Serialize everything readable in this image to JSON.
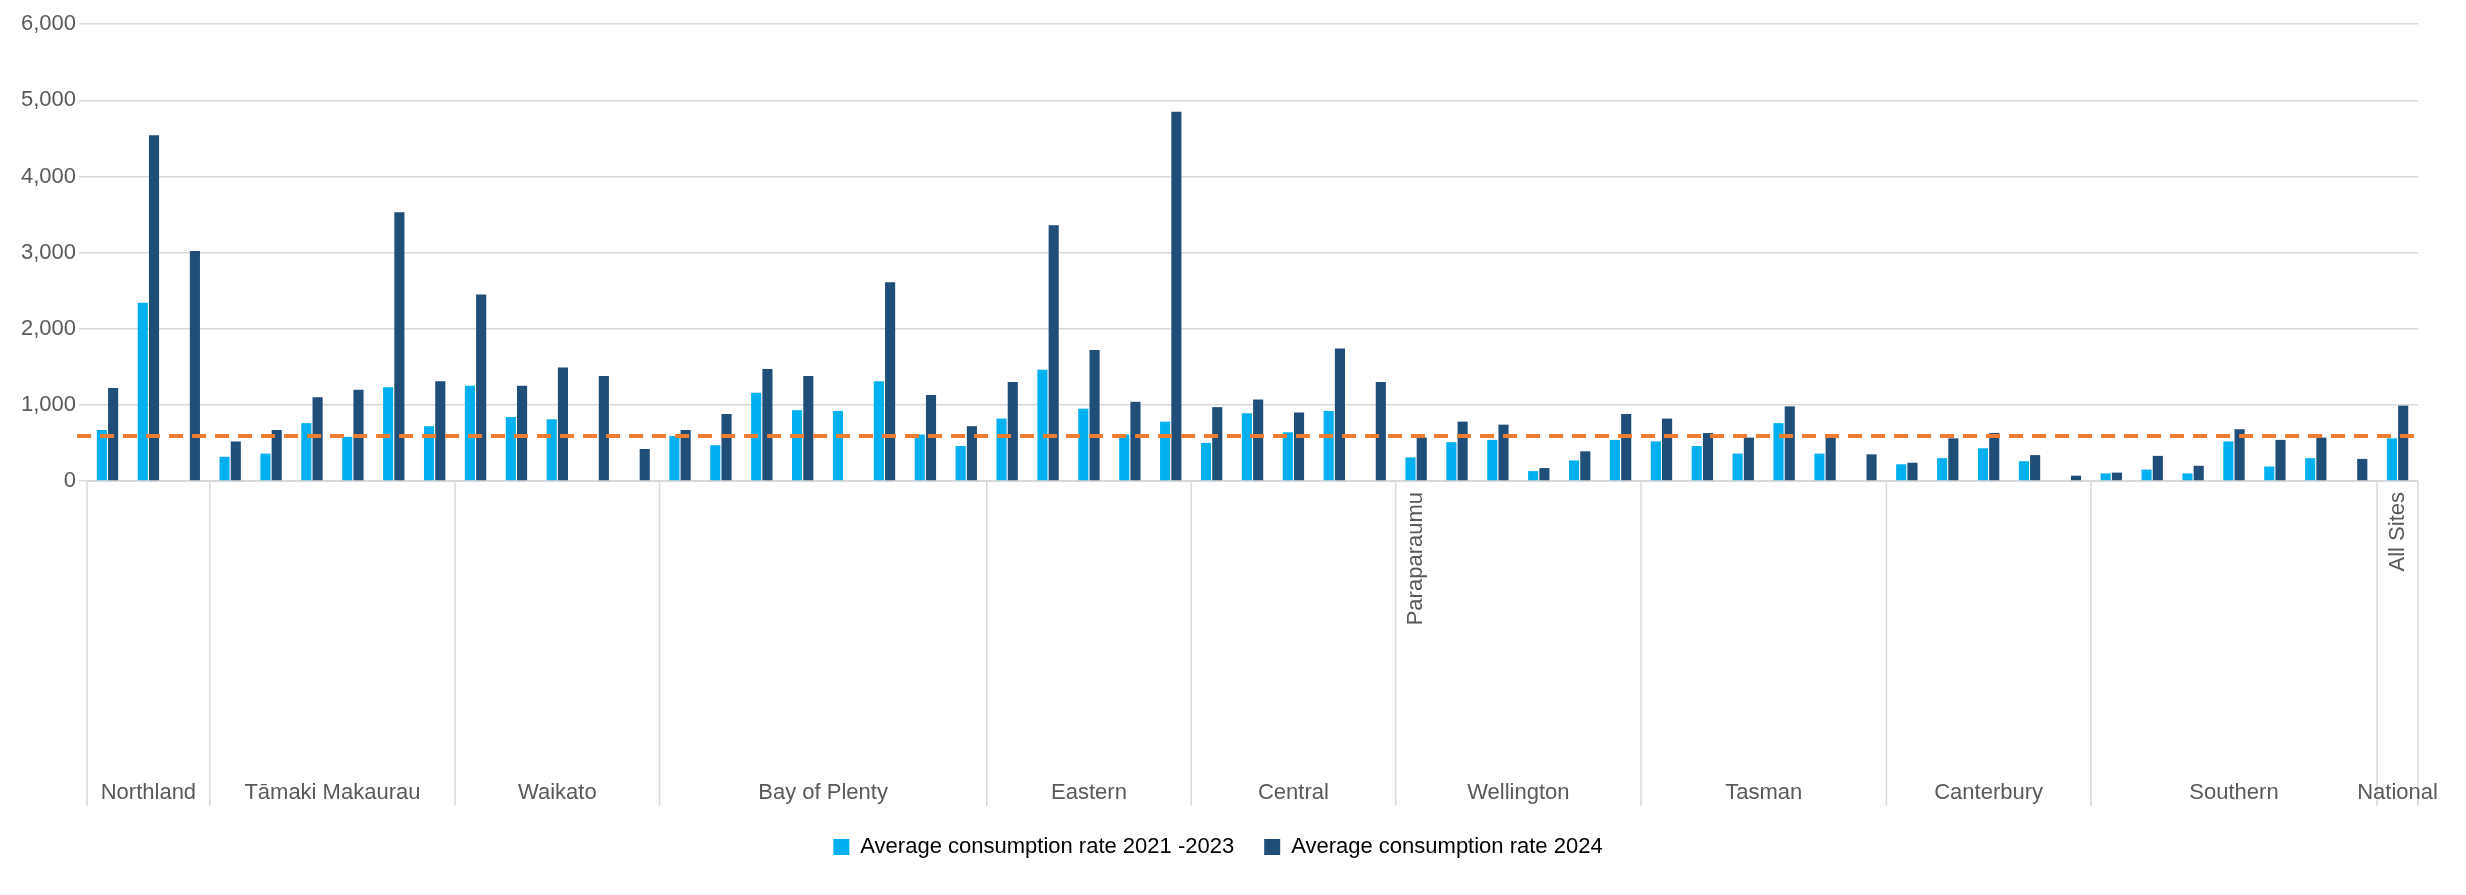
{
  "chart_data": {
    "type": "bar",
    "categories": [
      null,
      null,
      null,
      null,
      null,
      null,
      null,
      null,
      null,
      null,
      null,
      null,
      null,
      null,
      null,
      null,
      null,
      null,
      null,
      null,
      null,
      null,
      null,
      null,
      null,
      null,
      null,
      null,
      null,
      null,
      null,
      null,
      "Paraparaumu",
      null,
      null,
      null,
      null,
      null,
      null,
      null,
      null,
      null,
      null,
      null,
      null,
      null,
      null,
      null,
      null,
      null,
      null,
      null,
      null,
      null,
      null,
      null,
      "All Sites"
    ],
    "series": [
      {
        "name": "Average consumption rate 2021 -2023",
        "color": "#00b0f0",
        "values": [
          670,
          2340,
          null,
          320,
          360,
          760,
          580,
          1230,
          720,
          1250,
          840,
          810,
          null,
          null,
          590,
          470,
          1160,
          930,
          920,
          1310,
          610,
          460,
          820,
          1460,
          950,
          610,
          780,
          500,
          890,
          640,
          920,
          null,
          310,
          510,
          540,
          130,
          270,
          540,
          520,
          460,
          360,
          760,
          360,
          null,
          220,
          300,
          430,
          260,
          null,
          100,
          150,
          100,
          520,
          190,
          300,
          null,
          560
        ]
      },
      {
        "name": "Average consumption rate 2024",
        "color": "#1f4e79",
        "values": [
          1220,
          4540,
          3020,
          520,
          670,
          1100,
          1200,
          3530,
          1310,
          2450,
          1250,
          1490,
          1380,
          420,
          670,
          880,
          1470,
          1380,
          null,
          2610,
          1130,
          720,
          1300,
          3360,
          1720,
          1040,
          4850,
          970,
          1070,
          900,
          1740,
          1300,
          570,
          780,
          740,
          170,
          390,
          880,
          820,
          630,
          570,
          980,
          600,
          350,
          240,
          560,
          630,
          340,
          70,
          110,
          330,
          200,
          680,
          540,
          570,
          290,
          990
        ]
      }
    ],
    "ylim": [
      0,
      6000
    ],
    "yticks": [
      0,
      {
        "value": 1000,
        "label": "1,000"
      },
      {
        "value": 2000,
        "label": "2,000"
      },
      {
        "value": 3000,
        "label": "3,000"
      },
      {
        "value": 4000,
        "label": "4,000"
      },
      {
        "value": 5000,
        "label": "5,000"
      },
      {
        "value": 6000,
        "label": "6,000"
      }
    ],
    "grid": "y",
    "legend": "bottom",
    "ref_lines": [
      {
        "axis": "y",
        "value": 590,
        "color": "#ed7d31",
        "line_style": "dashed"
      }
    ],
    "annotations": [
      "Northland",
      "Tāmaki Makaurau",
      "Waikato",
      "Bay of Plenty",
      "Eastern",
      "Central",
      "Wellington",
      "Tasman",
      "Canterbury",
      "Southern",
      "National"
    ]
  }
}
